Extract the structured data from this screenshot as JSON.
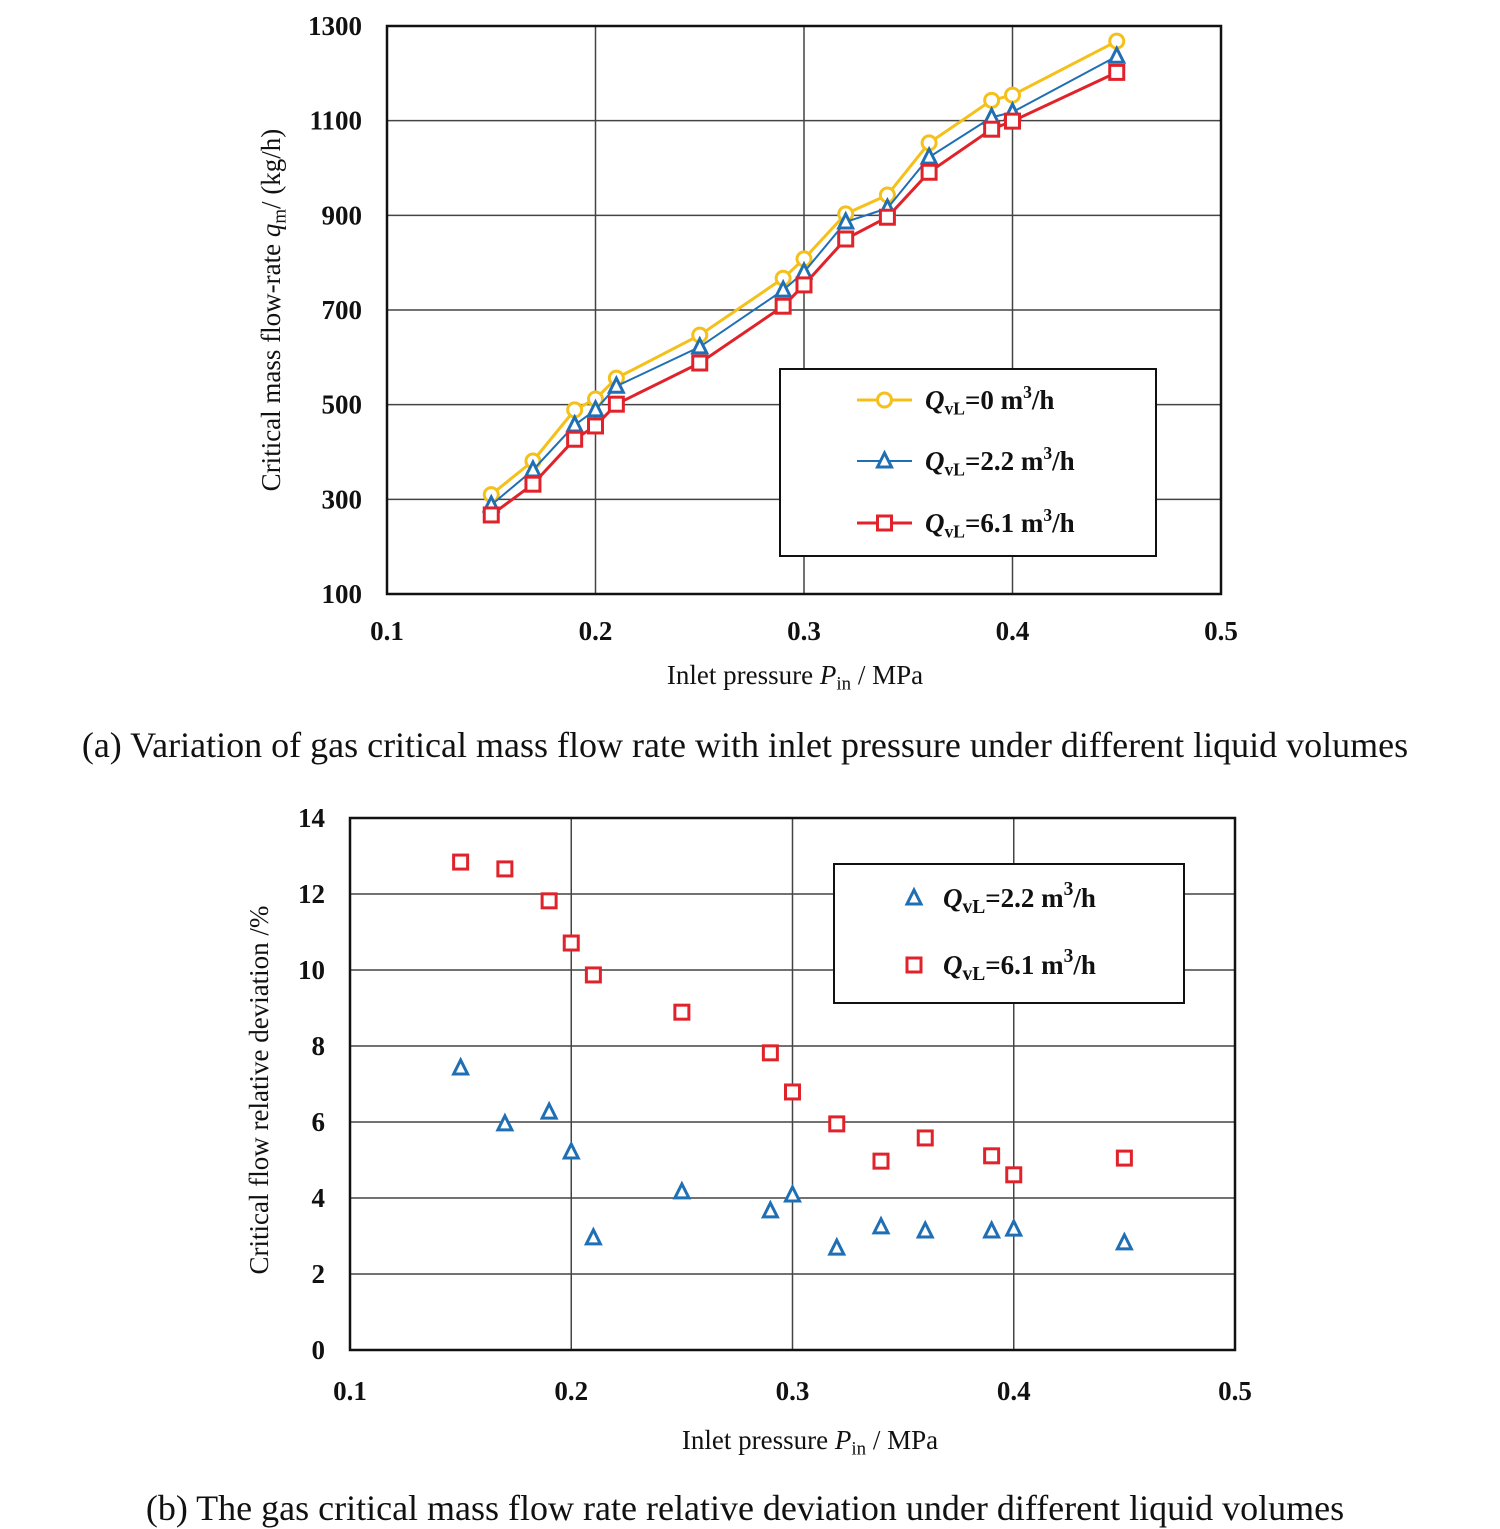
{
  "chart_data": [
    {
      "type": "line",
      "caption": "(a) Variation of gas critical mass flow rate with inlet pressure under different liquid volumes",
      "xlabel": {
        "text": "Inlet pressure ",
        "var": "P",
        "sub": "in",
        "rest": " / MPa"
      },
      "ylabel": {
        "text": "Critical mass flow-rate ",
        "var": "q",
        "sub": "m",
        "rest": "/ (kg/h)"
      },
      "xlim": [
        0.1,
        0.5
      ],
      "ylim": [
        100,
        1300
      ],
      "xticks": [
        "0.1",
        "0.2",
        "0.3",
        "0.4",
        "0.5"
      ],
      "yticks": [
        "100",
        "300",
        "500",
        "700",
        "900",
        "1100",
        "1300"
      ],
      "grid": true,
      "legend_position": "center-right",
      "x": [
        0.15,
        0.17,
        0.19,
        0.2,
        0.21,
        0.25,
        0.29,
        0.3,
        0.32,
        0.34,
        0.36,
        0.39,
        0.4,
        0.45
      ],
      "series": [
        {
          "name": {
            "var": "Q",
            "sub": "vL",
            "rest": "=0 m",
            "sup": "3",
            "tail": "/h"
          },
          "color": "#f5c01a",
          "marker": "circle",
          "values": [
            310,
            381,
            489,
            512,
            556,
            647,
            767,
            808,
            903,
            943,
            1053,
            1143,
            1154,
            1268
          ]
        },
        {
          "name": {
            "var": "Q",
            "sub": "vL",
            "rest": "=2.2 m",
            "sup": "3",
            "tail": "/h"
          },
          "color": "#1f6fb5",
          "marker": "triangle",
          "values": [
            288,
            362,
            457,
            489,
            539,
            622,
            742,
            780,
            886,
            915,
            1023,
            1107,
            1118,
            1236
          ]
        },
        {
          "name": {
            "var": "Q",
            "sub": "vL",
            "rest": "=6.1 m",
            "sup": "3",
            "tail": "/h"
          },
          "color": "#e0232b",
          "marker": "square",
          "values": [
            267,
            332,
            427,
            455,
            501,
            588,
            708,
            753,
            850,
            896,
            991,
            1082,
            1099,
            1202
          ]
        }
      ]
    },
    {
      "type": "scatter",
      "caption": "(b) The gas critical mass flow rate relative deviation under different liquid volumes",
      "xlabel": {
        "text": "Inlet pressure ",
        "var": "P",
        "sub": "in",
        "rest": " / MPa"
      },
      "ylabel": {
        "text": "Critical flow  relative deviation  /%",
        "var": "",
        "sub": "",
        "rest": ""
      },
      "xlim": [
        0.1,
        0.5
      ],
      "ylim": [
        0,
        14
      ],
      "xticks": [
        "0.1",
        "0.2",
        "0.3",
        "0.4",
        "0.5"
      ],
      "yticks": [
        "0",
        "2",
        "4",
        "6",
        "8",
        "10",
        "12",
        "14"
      ],
      "grid": true,
      "legend_position": "top-right",
      "x": [
        0.15,
        0.17,
        0.19,
        0.2,
        0.21,
        0.25,
        0.29,
        0.3,
        0.32,
        0.34,
        0.36,
        0.39,
        0.4,
        0.45
      ],
      "series": [
        {
          "name": {
            "var": "Q",
            "sub": "vL",
            "rest": "=2.2 m",
            "sup": "3",
            "tail": "/h"
          },
          "color": "#1f6fb5",
          "marker": "triangle",
          "values": [
            7.42,
            5.95,
            6.26,
            5.21,
            2.95,
            4.16,
            3.66,
            4.08,
            2.68,
            3.24,
            3.13,
            3.13,
            3.18,
            2.82
          ]
        },
        {
          "name": {
            "var": "Q",
            "sub": "vL",
            "rest": "=6.1 m",
            "sup": "3",
            "tail": "/h"
          },
          "color": "#e0232b",
          "marker": "square",
          "values": [
            12.84,
            12.66,
            11.82,
            10.71,
            9.87,
            8.89,
            7.82,
            6.79,
            5.95,
            4.97,
            5.58,
            5.11,
            4.61,
            5.05
          ]
        }
      ]
    }
  ]
}
